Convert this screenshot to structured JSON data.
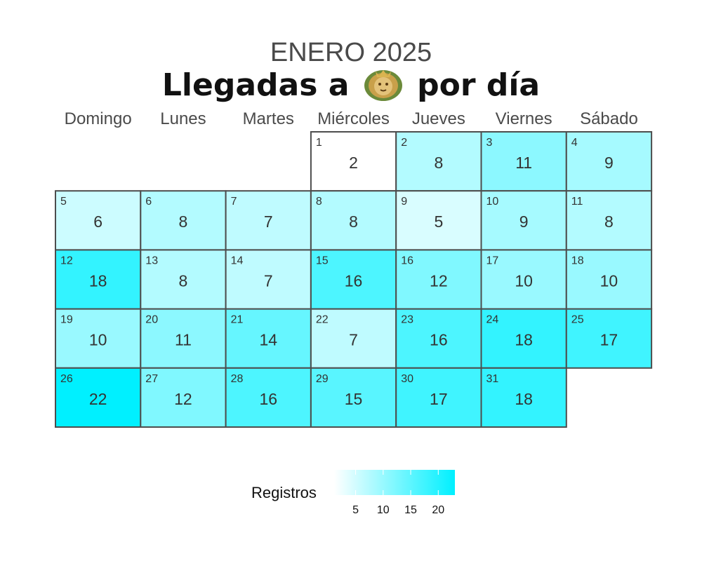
{
  "title": "ENERO 2025",
  "subtitle_before": "Llegadas a",
  "subtitle_after": "por día",
  "emblem_icon": "lion-crest-emblem",
  "legend": {
    "title": "Registros",
    "ticks": [
      5,
      10,
      15,
      20
    ],
    "min": 2,
    "max": 22,
    "low_color": "#ffffff",
    "high_color": "#00f0ff"
  },
  "chart_data": {
    "type": "heatmap",
    "title": "ENERO 2025",
    "subtitle": "Llegadas a (emblem) por día",
    "weekdays": [
      "Domingo",
      "Lunes",
      "Martes",
      "Miércoles",
      "Jueves",
      "Viernes",
      "Sábado"
    ],
    "first_weekday_index": 3,
    "days": [
      1,
      2,
      3,
      4,
      5,
      6,
      7,
      8,
      9,
      10,
      11,
      12,
      13,
      14,
      15,
      16,
      17,
      18,
      19,
      20,
      21,
      22,
      23,
      24,
      25,
      26,
      27,
      28,
      29,
      30,
      31
    ],
    "values": [
      2,
      8,
      11,
      9,
      6,
      8,
      7,
      8,
      5,
      9,
      8,
      18,
      8,
      7,
      16,
      12,
      10,
      10,
      10,
      11,
      14,
      7,
      16,
      18,
      17,
      22,
      12,
      16,
      15,
      17,
      18
    ],
    "color_scale": {
      "low": "#ffffff",
      "high": "#00f0ff",
      "min": 2,
      "max": 22
    }
  }
}
